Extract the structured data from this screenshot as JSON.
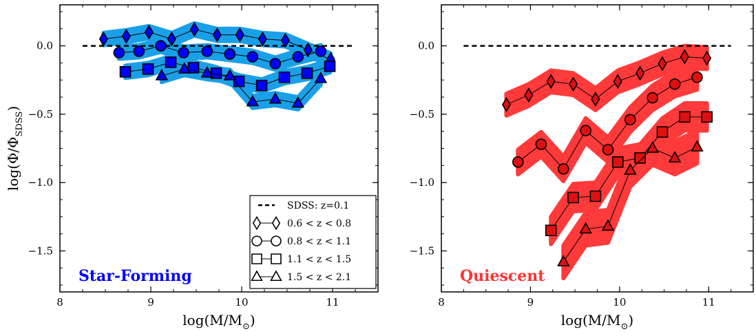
{
  "chart_data": [
    {
      "type": "line",
      "panel_label": "Star-Forming",
      "panel_label_color": "#0000ff",
      "band_color": "#1aa0e8",
      "marker_color": "#0000ff",
      "xlabel": "log(M/M",
      "xlabel_sub": "⊙",
      "xlabel_close": ")",
      "ylabel": "log(Φ/Φ",
      "ylabel_sub": "SDSS",
      "ylabel_close": ")",
      "xlim": [
        8.0,
        11.5
      ],
      "ylim": [
        -1.8,
        0.3
      ],
      "xticks": [
        "8",
        "9",
        "10",
        "11"
      ],
      "yticks": [
        "0.0",
        "−0.5",
        "−1.0",
        "−1.5"
      ],
      "reference": {
        "name": "SDSS: z=0.1",
        "y": 0.0,
        "x": [
          8.25,
          11.25
        ]
      },
      "legend": [
        {
          "label": "SDSS: z=0.1",
          "symbol": "dash"
        },
        {
          "label": "0.6 < z < 0.8",
          "symbol": "diamond"
        },
        {
          "label": "0.8 < z < 1.1",
          "symbol": "circle"
        },
        {
          "label": "1.1 < z < 1.5",
          "symbol": "square"
        },
        {
          "label": "1.5 < z < 2.1",
          "symbol": "triangle"
        }
      ],
      "series": [
        {
          "name": "0.6 < z < 0.8",
          "marker": "diamond",
          "band": 0.045,
          "x": [
            8.48,
            8.73,
            8.98,
            9.23,
            9.48,
            9.73,
            9.98,
            10.23,
            10.48,
            10.73,
            10.98
          ],
          "y": [
            0.05,
            0.07,
            0.1,
            0.05,
            0.12,
            0.08,
            0.08,
            0.05,
            0.04,
            -0.03,
            -0.1
          ]
        },
        {
          "name": "0.8 < z < 1.1",
          "marker": "circle",
          "band": 0.045,
          "x": [
            8.65,
            8.87,
            9.11,
            9.36,
            9.62,
            9.87,
            10.12,
            10.37,
            10.62,
            10.87
          ],
          "y": [
            -0.05,
            -0.04,
            0.0,
            -0.05,
            -0.04,
            -0.06,
            -0.08,
            -0.13,
            -0.08,
            -0.04
          ]
        },
        {
          "name": "1.1 < z < 1.5",
          "marker": "square",
          "band": 0.045,
          "x": [
            8.72,
            8.97,
            9.22,
            9.47,
            9.72,
            9.97,
            10.22,
            10.47,
            10.72,
            10.97
          ],
          "y": [
            -0.19,
            -0.17,
            -0.12,
            -0.16,
            -0.2,
            -0.26,
            -0.29,
            -0.23,
            -0.2,
            -0.15
          ]
        },
        {
          "name": "1.5 < z < 2.1",
          "marker": "triangle",
          "band": 0.045,
          "x": [
            9.12,
            9.37,
            9.62,
            9.87,
            10.12,
            10.37,
            10.62,
            10.87
          ],
          "y": [
            -0.22,
            -0.17,
            -0.2,
            -0.22,
            -0.41,
            -0.39,
            -0.42,
            -0.24
          ]
        }
      ]
    },
    {
      "type": "line",
      "panel_label": "Quiescent",
      "panel_label_color": "#ff3333",
      "band_color": "#ff3a3a",
      "marker_color": "#dd1111",
      "xlabel": "log(M/M",
      "xlabel_sub": "⊙",
      "xlabel_close": ")",
      "xlim": [
        8.0,
        11.5
      ],
      "ylim": [
        -1.8,
        0.3
      ],
      "xticks": [
        "8",
        "9",
        "10",
        "11"
      ],
      "yticks": [
        "0.0",
        "−0.5",
        "−1.0",
        "−1.5"
      ],
      "reference": {
        "name": "SDSS: z=0.1",
        "y": 0.0,
        "x": [
          8.25,
          11.25
        ]
      },
      "series": [
        {
          "name": "0.6 < z < 0.8",
          "marker": "diamond",
          "band": 0.08,
          "x": [
            8.73,
            8.98,
            9.23,
            9.48,
            9.73,
            9.98,
            10.23,
            10.48,
            10.73,
            10.98
          ],
          "y": [
            -0.43,
            -0.36,
            -0.26,
            -0.28,
            -0.39,
            -0.26,
            -0.2,
            -0.13,
            -0.08,
            -0.09
          ]
        },
        {
          "name": "0.8 < z < 1.1",
          "marker": "circle",
          "band": 0.09,
          "x": [
            8.86,
            9.12,
            9.37,
            9.62,
            9.87,
            10.12,
            10.37,
            10.62,
            10.87
          ],
          "y": [
            -0.85,
            -0.72,
            -0.9,
            -0.62,
            -0.76,
            -0.54,
            -0.38,
            -0.28,
            -0.23
          ]
        },
        {
          "name": "1.1 < z < 1.5",
          "marker": "square",
          "band": 0.1,
          "x": [
            9.23,
            9.48,
            9.73,
            9.98,
            10.23,
            10.48,
            10.73,
            10.98
          ],
          "y": [
            -1.35,
            -1.11,
            -1.1,
            -0.85,
            -0.82,
            -0.63,
            -0.52,
            -0.52
          ]
        },
        {
          "name": "1.5 < z < 2.1",
          "marker": "triangle",
          "band": 0.12,
          "x": [
            9.37,
            9.62,
            9.87,
            10.12,
            10.37,
            10.62,
            10.87
          ],
          "y": [
            -1.58,
            -1.34,
            -1.32,
            -0.91,
            -0.75,
            -0.82,
            -0.74
          ]
        }
      ]
    }
  ]
}
